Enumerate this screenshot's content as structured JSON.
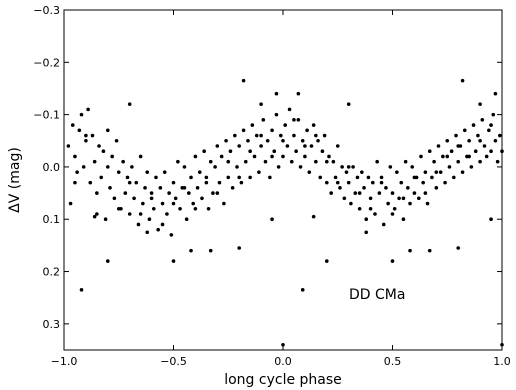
{
  "chart_data": {
    "type": "scatter",
    "xlabel": "long cycle phase",
    "ylabel": "ΔV (mag)",
    "xlim": [
      -1.0,
      1.0
    ],
    "ylim": [
      0.35,
      -0.3
    ],
    "y_inverted": true,
    "grid": false,
    "x_ticks": [
      -1.0,
      -0.5,
      0.0,
      0.5,
      1.0
    ],
    "x_tick_labels": [
      "−1.0",
      "−0.5",
      "0.0",
      "0.5",
      "1.0"
    ],
    "y_ticks": [
      -0.3,
      -0.2,
      -0.1,
      0.0,
      0.1,
      0.2,
      0.3
    ],
    "y_tick_labels": [
      "−0.3",
      "−0.2",
      "−0.1",
      "0.0",
      "0.1",
      "0.2",
      "0.3"
    ],
    "annotation": "DD CMa",
    "marker_color": "#000000",
    "series": [
      {
        "points": [
          [
            -0.98,
            -0.04
          ],
          [
            -0.97,
            0.07
          ],
          [
            -0.96,
            -0.08
          ],
          [
            -0.95,
            -0.02
          ],
          [
            -0.94,
            0.01
          ],
          [
            -0.93,
            -0.07
          ],
          [
            -0.92,
            -0.1
          ],
          [
            -0.91,
            0.0
          ],
          [
            -0.9,
            -0.05
          ],
          [
            -0.89,
            -0.11
          ],
          [
            -0.88,
            0.03
          ],
          [
            -0.87,
            -0.06
          ],
          [
            -0.86,
            -0.01
          ],
          [
            -0.85,
            0.09
          ],
          [
            -0.84,
            -0.04
          ],
          [
            -0.83,
            0.02
          ],
          [
            -0.82,
            -0.03
          ],
          [
            -0.81,
            0.1
          ],
          [
            -0.8,
            -0.07
          ],
          [
            -0.79,
            0.04
          ],
          [
            -0.78,
            -0.02
          ],
          [
            -0.77,
            0.06
          ],
          [
            -0.76,
            -0.05
          ],
          [
            -0.75,
            0.01
          ],
          [
            -0.74,
            0.08
          ],
          [
            -0.73,
            -0.01
          ],
          [
            -0.72,
            0.05
          ],
          [
            -0.71,
            0.02
          ],
          [
            -0.7,
            0.09
          ],
          [
            -0.69,
            0.0
          ],
          [
            -0.68,
            0.06
          ],
          [
            -0.67,
            0.03
          ],
          [
            -0.66,
            0.11
          ],
          [
            -0.65,
            -0.02
          ],
          [
            -0.64,
            0.07
          ],
          [
            -0.63,
            0.04
          ],
          [
            -0.62,
            0.01
          ],
          [
            -0.61,
            0.1
          ],
          [
            -0.6,
            0.05
          ],
          [
            -0.59,
            0.08
          ],
          [
            -0.58,
            0.02
          ],
          [
            -0.57,
            0.12
          ],
          [
            -0.56,
            0.04
          ],
          [
            -0.55,
            0.07
          ],
          [
            -0.54,
            0.01
          ],
          [
            -0.53,
            0.09
          ],
          [
            -0.52,
            0.05
          ],
          [
            -0.51,
            0.13
          ],
          [
            -0.5,
            0.03
          ],
          [
            -0.49,
            0.06
          ],
          [
            -0.48,
            -0.01
          ],
          [
            -0.47,
            0.08
          ],
          [
            -0.46,
            0.04
          ],
          [
            -0.45,
            0.0
          ],
          [
            -0.44,
            0.1
          ],
          [
            -0.43,
            0.05
          ],
          [
            -0.42,
            0.02
          ],
          [
            -0.41,
            0.07
          ],
          [
            -0.4,
            -0.02
          ],
          [
            -0.39,
            0.04
          ],
          [
            -0.38,
            0.01
          ],
          [
            -0.37,
            0.06
          ],
          [
            -0.36,
            -0.03
          ],
          [
            -0.35,
            0.03
          ],
          [
            -0.34,
            0.08
          ],
          [
            -0.33,
            -0.01
          ],
          [
            -0.32,
            0.05
          ],
          [
            -0.31,
            0.0
          ],
          [
            -0.3,
            -0.04
          ],
          [
            -0.29,
            0.03
          ],
          [
            -0.28,
            -0.02
          ],
          [
            -0.27,
            0.07
          ],
          [
            -0.26,
            -0.05
          ],
          [
            -0.25,
            0.02
          ],
          [
            -0.24,
            -0.03
          ],
          [
            -0.23,
            0.04
          ],
          [
            -0.22,
            -0.06
          ],
          [
            -0.21,
            0.0
          ],
          [
            -0.2,
            -0.04
          ],
          [
            -0.19,
            0.03
          ],
          [
            -0.18,
            -0.07
          ],
          [
            -0.17,
            -0.01
          ],
          [
            -0.16,
            -0.05
          ],
          [
            -0.15,
            0.02
          ],
          [
            -0.14,
            -0.08
          ],
          [
            -0.13,
            -0.02
          ],
          [
            -0.12,
            -0.06
          ],
          [
            -0.11,
            0.01
          ],
          [
            -0.1,
            -0.04
          ],
          [
            -0.09,
            -0.09
          ],
          [
            -0.08,
            -0.01
          ],
          [
            -0.07,
            -0.05
          ],
          [
            -0.06,
            0.02
          ],
          [
            -0.05,
            -0.07
          ],
          [
            -0.04,
            -0.03
          ],
          [
            -0.03,
            -0.1
          ],
          [
            -0.02,
            0.0
          ],
          [
            -0.01,
            -0.06
          ],
          [
            0.0,
            -0.02
          ],
          [
            0.01,
            -0.08
          ],
          [
            0.02,
            -0.04
          ],
          [
            0.03,
            -0.11
          ],
          [
            0.04,
            -0.01
          ],
          [
            0.05,
            -0.06
          ],
          [
            0.06,
            -0.03
          ],
          [
            0.07,
            -0.09
          ],
          [
            0.08,
            0.0
          ],
          [
            0.09,
            -0.05
          ],
          [
            0.1,
            -0.02
          ],
          [
            0.11,
            -0.07
          ],
          [
            0.12,
            0.01
          ],
          [
            0.13,
            -0.04
          ],
          [
            0.14,
            -0.08
          ],
          [
            0.15,
            -0.01
          ],
          [
            0.16,
            -0.05
          ],
          [
            0.17,
            0.02
          ],
          [
            0.18,
            -0.03
          ],
          [
            0.19,
            -0.06
          ],
          [
            0.2,
            0.03
          ],
          [
            0.21,
            -0.02
          ],
          [
            0.22,
            0.05
          ],
          [
            0.23,
            -0.01
          ],
          [
            0.24,
            0.02
          ],
          [
            0.25,
            -0.04
          ],
          [
            0.26,
            0.04
          ],
          [
            0.27,
            0.0
          ],
          [
            0.28,
            0.06
          ],
          [
            0.29,
            0.01
          ],
          [
            0.3,
            0.03
          ],
          [
            0.31,
            0.07
          ],
          [
            0.32,
            0.0
          ],
          [
            0.33,
            0.05
          ],
          [
            0.34,
            0.02
          ],
          [
            0.35,
            0.08
          ],
          [
            0.36,
            0.01
          ],
          [
            0.37,
            0.04
          ],
          [
            0.38,
            0.1
          ],
          [
            0.39,
            0.02
          ],
          [
            0.4,
            0.06
          ],
          [
            0.41,
            0.03
          ],
          [
            0.42,
            0.09
          ],
          [
            0.43,
            -0.01
          ],
          [
            0.44,
            0.05
          ],
          [
            0.45,
            0.02
          ],
          [
            0.46,
            0.11
          ],
          [
            0.47,
            0.04
          ],
          [
            0.48,
            0.07
          ],
          [
            0.49,
            0.0
          ],
          [
            0.5,
            0.05
          ],
          [
            0.51,
            0.08
          ],
          [
            0.52,
            0.01
          ],
          [
            0.53,
            0.06
          ],
          [
            0.54,
            0.03
          ],
          [
            0.55,
            0.1
          ],
          [
            0.56,
            -0.01
          ],
          [
            0.57,
            0.04
          ],
          [
            0.58,
            0.07
          ],
          [
            0.59,
            0.0
          ],
          [
            0.6,
            0.05
          ],
          [
            0.61,
            0.02
          ],
          [
            0.62,
            0.06
          ],
          [
            0.63,
            -0.02
          ],
          [
            0.64,
            0.03
          ],
          [
            0.65,
            0.01
          ],
          [
            0.66,
            0.07
          ],
          [
            0.67,
            -0.03
          ],
          [
            0.68,
            0.02
          ],
          [
            0.69,
            -0.01
          ],
          [
            0.7,
            0.04
          ],
          [
            0.71,
            -0.04
          ],
          [
            0.72,
            0.01
          ],
          [
            0.73,
            -0.02
          ],
          [
            0.74,
            0.03
          ],
          [
            0.75,
            -0.05
          ],
          [
            0.76,
            0.0
          ],
          [
            0.77,
            -0.03
          ],
          [
            0.78,
            0.02
          ],
          [
            0.79,
            -0.06
          ],
          [
            0.8,
            -0.01
          ],
          [
            0.81,
            -0.04
          ],
          [
            0.82,
            0.01
          ],
          [
            0.83,
            -0.07
          ],
          [
            0.84,
            -0.02
          ],
          [
            0.85,
            -0.05
          ],
          [
            0.86,
            0.0
          ],
          [
            0.87,
            -0.08
          ],
          [
            0.88,
            -0.03
          ],
          [
            0.89,
            -0.06
          ],
          [
            0.9,
            -0.01
          ],
          [
            0.91,
            -0.09
          ],
          [
            0.92,
            -0.04
          ],
          [
            0.93,
            -0.02
          ],
          [
            0.94,
            -0.07
          ],
          [
            0.95,
            -0.03
          ],
          [
            0.96,
            -0.1
          ],
          [
            0.97,
            -0.05
          ],
          [
            0.98,
            -0.01
          ],
          [
            0.99,
            -0.06
          ],
          [
            -0.92,
            0.235
          ],
          [
            -0.86,
            0.095
          ],
          [
            -0.8,
            0.18
          ],
          [
            -0.7,
            -0.12
          ],
          [
            -0.62,
            0.125
          ],
          [
            -0.5,
            0.18
          ],
          [
            -0.42,
            0.16
          ],
          [
            -0.33,
            0.16
          ],
          [
            -0.2,
            0.155
          ],
          [
            -0.18,
            -0.165
          ],
          [
            -0.1,
            -0.12
          ],
          [
            -0.05,
            0.1
          ],
          [
            -0.03,
            -0.14
          ],
          [
            0.0,
            0.34
          ],
          [
            0.07,
            -0.14
          ],
          [
            0.09,
            0.235
          ],
          [
            0.14,
            0.095
          ],
          [
            0.2,
            0.18
          ],
          [
            0.3,
            -0.12
          ],
          [
            0.38,
            0.125
          ],
          [
            0.5,
            0.18
          ],
          [
            0.58,
            0.16
          ],
          [
            0.67,
            0.16
          ],
          [
            0.8,
            0.155
          ],
          [
            0.82,
            -0.165
          ],
          [
            0.9,
            -0.12
          ],
          [
            0.95,
            0.1
          ],
          [
            0.97,
            -0.14
          ],
          [
            1.0,
            0.34
          ],
          [
            -0.95,
            0.03
          ],
          [
            -0.9,
            -0.06
          ],
          [
            -0.85,
            0.05
          ],
          [
            -0.8,
            0.0
          ],
          [
            -0.75,
            0.08
          ],
          [
            -0.7,
            0.03
          ],
          [
            -0.65,
            0.09
          ],
          [
            -0.6,
            0.06
          ],
          [
            -0.55,
            0.11
          ],
          [
            -0.5,
            0.07
          ],
          [
            -0.45,
            0.04
          ],
          [
            -0.4,
            0.08
          ],
          [
            -0.35,
            0.02
          ],
          [
            -0.3,
            0.05
          ],
          [
            -0.25,
            -0.01
          ],
          [
            -0.2,
            0.02
          ],
          [
            -0.15,
            -0.03
          ],
          [
            -0.1,
            -0.06
          ],
          [
            -0.05,
            -0.02
          ],
          [
            0.0,
            -0.05
          ],
          [
            0.05,
            -0.09
          ],
          [
            0.1,
            -0.04
          ],
          [
            0.15,
            -0.06
          ],
          [
            0.2,
            -0.01
          ],
          [
            0.25,
            0.03
          ],
          [
            0.3,
            0.0
          ],
          [
            0.35,
            0.05
          ],
          [
            0.4,
            0.08
          ],
          [
            0.45,
            0.03
          ],
          [
            0.5,
            0.09
          ],
          [
            0.55,
            0.06
          ],
          [
            0.6,
            0.02
          ],
          [
            0.65,
            0.05
          ],
          [
            0.7,
            0.01
          ],
          [
            0.75,
            -0.02
          ],
          [
            0.8,
            -0.04
          ],
          [
            0.85,
            -0.02
          ],
          [
            0.9,
            -0.05
          ],
          [
            0.95,
            -0.08
          ],
          [
            1.0,
            -0.03
          ]
        ]
      }
    ]
  }
}
